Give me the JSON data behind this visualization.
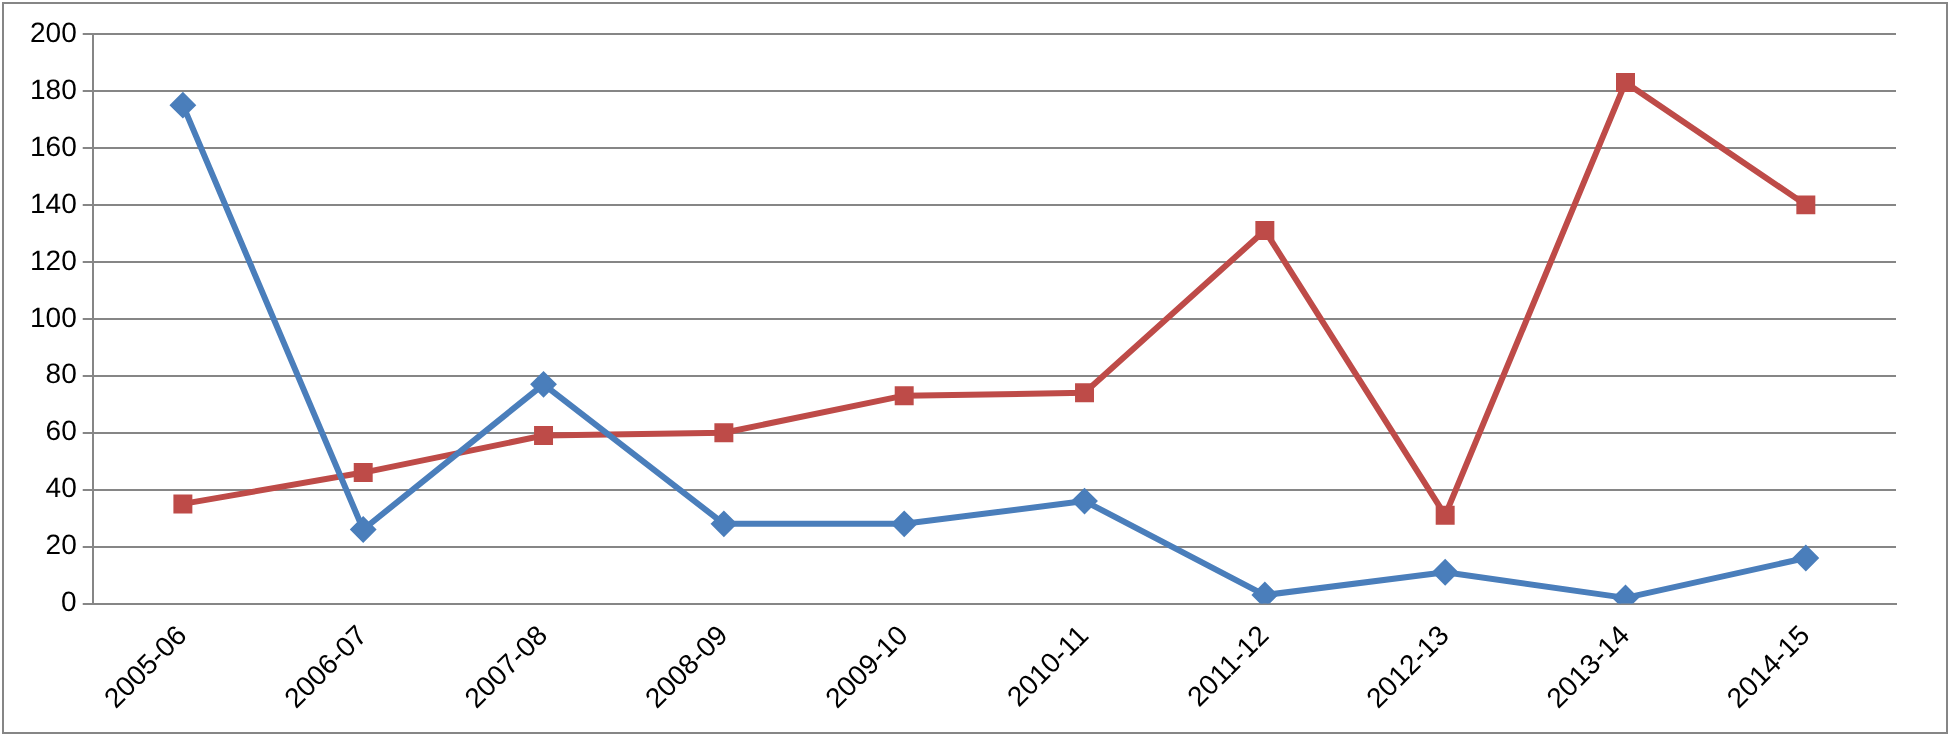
{
  "chart_data": {
    "type": "line",
    "categories": [
      "2005-06",
      "2006-07",
      "2007-08",
      "2008-09",
      "2009-10",
      "2010-11",
      "2011-12",
      "2012-13",
      "2013-14",
      "2014-15"
    ],
    "series": [
      {
        "color": "#4a7ebb",
        "marker": "diamond",
        "values": [
          175,
          26,
          77,
          28,
          28,
          36,
          3,
          11,
          2,
          16
        ]
      },
      {
        "color": "#be4b48",
        "marker": "square",
        "values": [
          35,
          46,
          59,
          60,
          73,
          74,
          131,
          31,
          183,
          140
        ]
      }
    ],
    "ylim": [
      0,
      200
    ],
    "yticks": [
      0,
      20,
      40,
      60,
      80,
      100,
      120,
      140,
      160,
      180,
      200
    ],
    "grid": "y",
    "legend": false,
    "line_style": "solid"
  }
}
